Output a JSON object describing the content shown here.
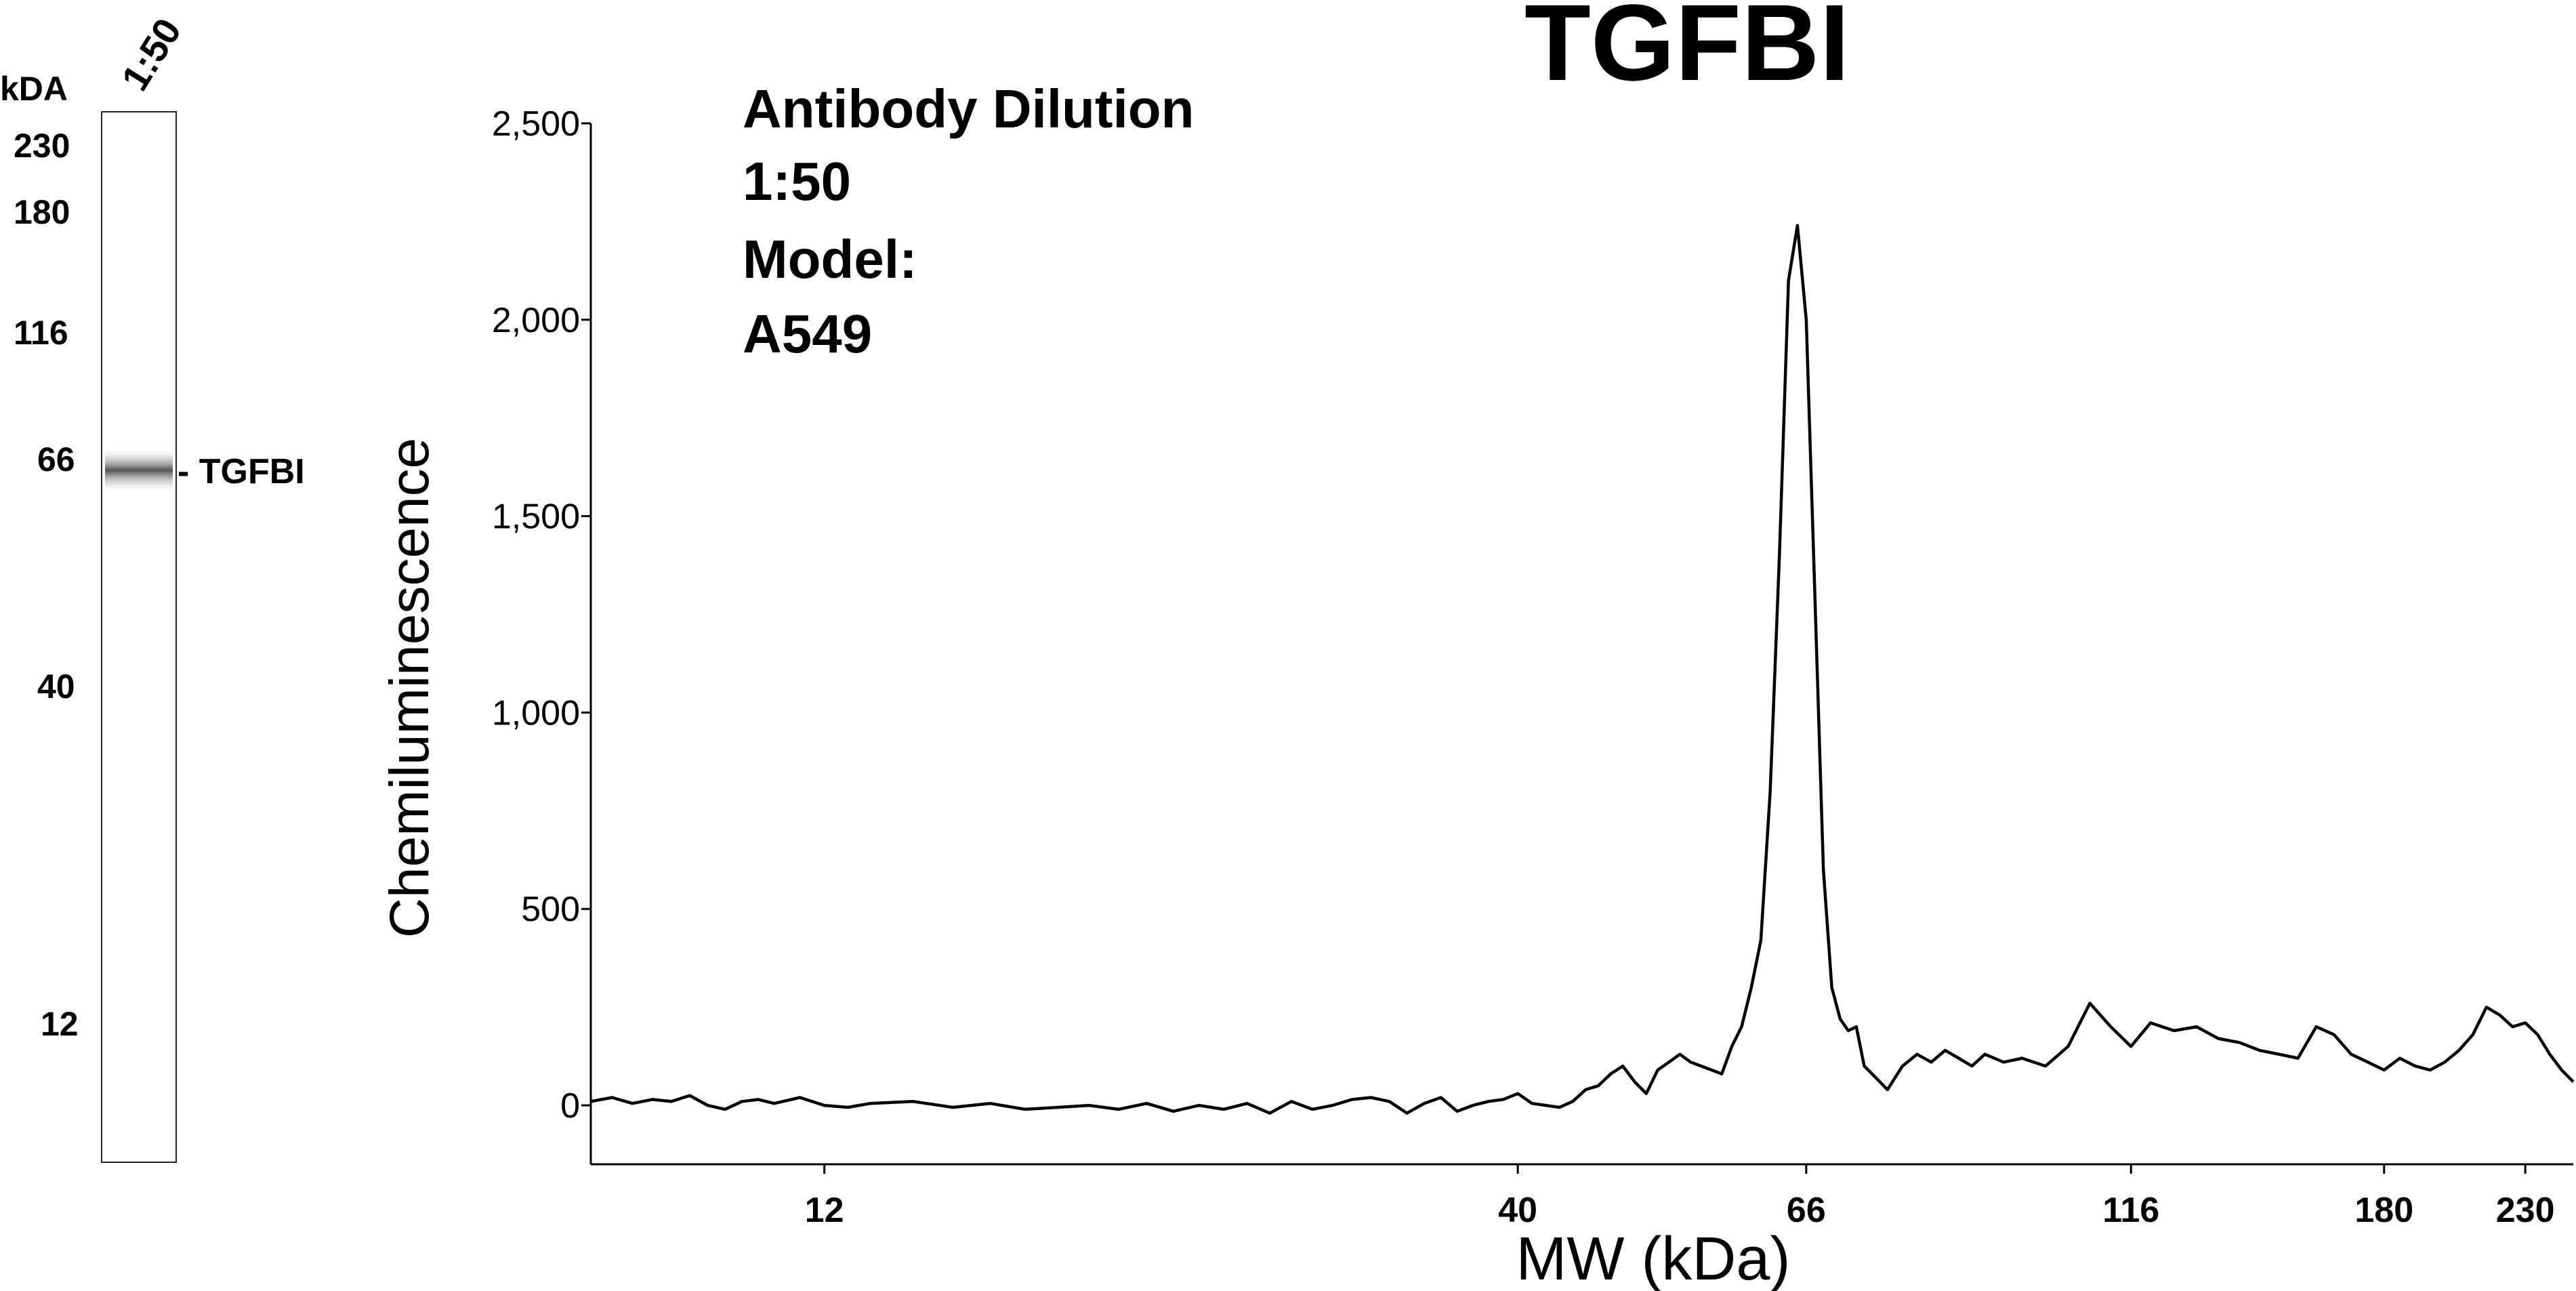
{
  "gel": {
    "lane_label": "1:50",
    "unit_label": "kDA",
    "markers": [
      "230",
      "180",
      "116",
      "66",
      "40",
      "12"
    ],
    "band_label": "- TGFBI"
  },
  "chart_data": {
    "type": "line",
    "title": "TGFBI",
    "annotations": [
      "Antibody Dilution",
      "1:50",
      "Model:",
      "A549"
    ],
    "xlabel": "MW (kDa)",
    "ylabel": "Chemiluminescence",
    "x_ticks": [
      "12",
      "40",
      "66",
      "116",
      "180",
      "230"
    ],
    "y_ticks": [
      "0",
      "500",
      "1,000",
      "1,500",
      "2,000",
      "2,500"
    ],
    "ylim": [
      -150,
      2500
    ],
    "x_scale": "log",
    "grid": false,
    "series": [
      {
        "x": [
          8,
          8.3,
          8.6,
          8.9,
          9.2,
          9.5,
          9.8,
          10.1,
          10.4,
          10.7,
          11,
          11.5,
          12,
          12.5,
          13,
          14,
          15,
          16,
          17,
          18,
          19,
          20,
          21,
          22,
          23,
          24,
          25,
          26,
          27,
          28,
          29,
          30,
          31,
          32,
          33,
          34,
          35,
          36,
          37,
          38,
          39,
          40,
          41,
          42,
          43,
          44,
          45,
          46,
          47,
          48,
          49,
          50,
          51,
          52,
          53,
          54,
          55,
          56,
          57,
          58,
          59,
          60,
          61,
          62,
          63,
          64,
          65,
          66,
          67,
          68,
          69,
          70,
          71,
          72,
          73,
          74,
          75,
          76,
          78,
          80,
          82,
          84,
          86,
          88,
          90,
          93,
          96,
          100,
          104,
          108,
          112,
          116,
          120,
          125,
          130,
          135,
          140,
          145,
          150,
          155,
          160,
          165,
          170,
          175,
          180,
          185,
          190,
          195,
          200,
          205,
          210,
          215,
          220,
          225,
          230,
          235,
          240,
          245,
          250
        ],
        "y": [
          10,
          20,
          5,
          15,
          10,
          25,
          0,
          -10,
          10,
          15,
          5,
          20,
          0,
          -5,
          5,
          10,
          -5,
          5,
          -10,
          -5,
          0,
          -10,
          5,
          -15,
          0,
          -10,
          5,
          -20,
          10,
          -10,
          0,
          15,
          20,
          10,
          -20,
          5,
          20,
          -15,
          0,
          10,
          15,
          30,
          5,
          0,
          -5,
          10,
          40,
          50,
          80,
          100,
          60,
          30,
          90,
          110,
          130,
          110,
          100,
          90,
          80,
          150,
          200,
          300,
          420,
          800,
          1400,
          2100,
          2240,
          2000,
          1300,
          600,
          300,
          220,
          190,
          200,
          100,
          80,
          60,
          40,
          100,
          130,
          110,
          140,
          120,
          100,
          130,
          110,
          120,
          100,
          150,
          260,
          200,
          150,
          210,
          190,
          200,
          170,
          160,
          140,
          130,
          120,
          200,
          180,
          130,
          110,
          90,
          120,
          100,
          90,
          110,
          140,
          180,
          250,
          230,
          200,
          210,
          180,
          130,
          90,
          60
        ]
      }
    ]
  }
}
